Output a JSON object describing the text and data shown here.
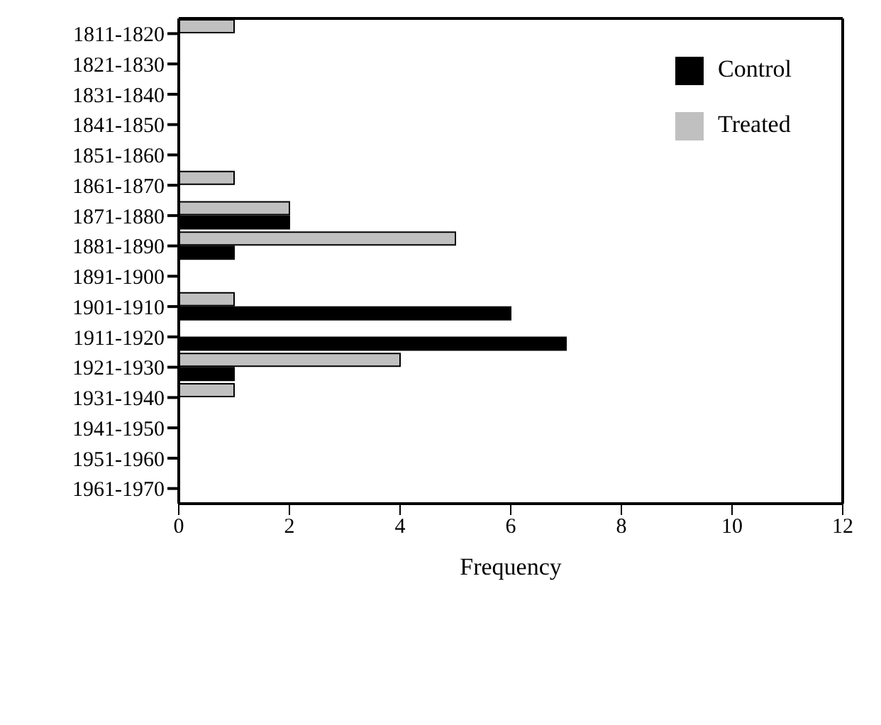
{
  "chart_data": {
    "type": "bar",
    "orientation": "horizontal",
    "xlabel": "Frequency",
    "categories": [
      "1811-1820",
      "1821-1830",
      "1831-1840",
      "1841-1850",
      "1851-1860",
      "1861-1870",
      "1871-1880",
      "1881-1890",
      "1891-1900",
      "1901-1910",
      "1911-1920",
      "1921-1930",
      "1931-1940",
      "1941-1950",
      "1951-1960",
      "1961-1970"
    ],
    "series": [
      {
        "name": "Treated",
        "color": "#c0c0c0",
        "values": [
          1,
          0,
          0,
          0,
          0,
          1,
          2,
          5,
          0,
          1,
          0,
          4,
          1,
          0,
          0,
          0
        ]
      },
      {
        "name": "Control",
        "color": "#000000",
        "values": [
          0,
          0,
          0,
          0,
          0,
          0,
          2,
          1,
          0,
          6,
          7,
          1,
          0,
          0,
          0,
          0
        ]
      }
    ],
    "xlim": [
      0,
      12
    ],
    "xticks": [
      0,
      2,
      4,
      6,
      8,
      10,
      12
    ],
    "grid": false,
    "legend": "top right"
  }
}
